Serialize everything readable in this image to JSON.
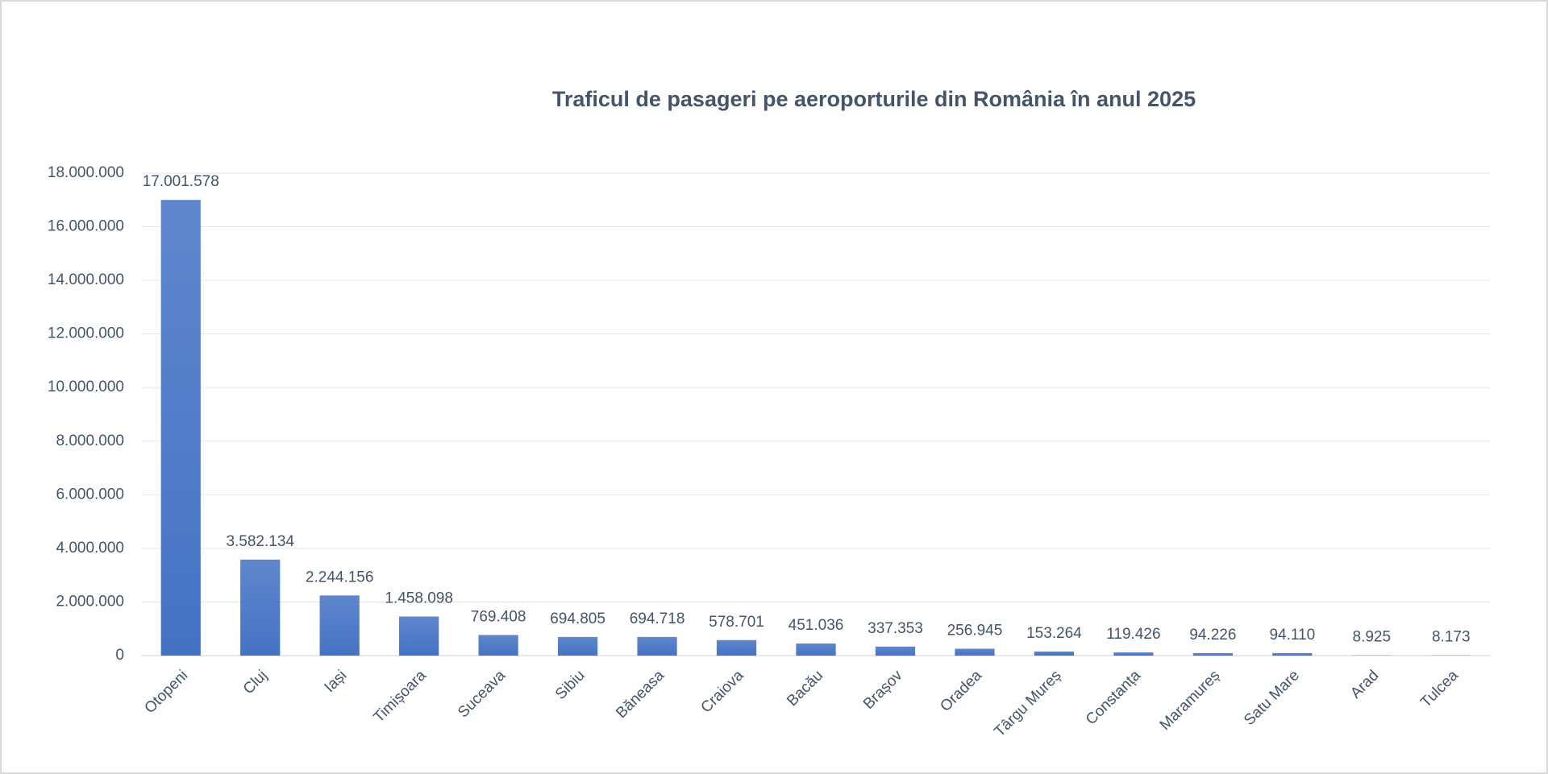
{
  "chart_data": {
    "type": "bar",
    "title": "Traficul de pasageri pe aeroporturile din România în anul 2025",
    "categories": [
      "Otopeni",
      "Cluj",
      "Iași",
      "Timișoara",
      "Suceava",
      "Sibiu",
      "Băneasa",
      "Craiova",
      "Bacău",
      "Brașov",
      "Oradea",
      "Târgu Mureș",
      "Constanța",
      "Maramureș",
      "Satu Mare",
      "Arad",
      "Tulcea"
    ],
    "values": [
      17001578,
      3582134,
      2244156,
      1458098,
      769408,
      694805,
      694718,
      578701,
      451036,
      337353,
      256945,
      153264,
      119426,
      94226,
      94110,
      8925,
      8173
    ],
    "value_labels": [
      "17.001.578",
      "3.582.134",
      "2.244.156",
      "1.458.098",
      "769.408",
      "694.805",
      "694.718",
      "578.701",
      "451.036",
      "337.353",
      "256.945",
      "153.264",
      "119.426",
      "94.226",
      "94.110",
      "8.925",
      "8.173"
    ],
    "color": "#4472c4",
    "ylim": [
      0,
      18000000
    ],
    "yticks": [
      0,
      {
        "value": 2000000,
        "label": "2.000.000"
      },
      {
        "value": 4000000,
        "label": "4.000.000"
      },
      {
        "value": 6000000,
        "label": "6.000.000"
      },
      {
        "value": 8000000,
        "label": "8.000.000"
      },
      {
        "value": 10000000,
        "label": "10.000.000"
      },
      {
        "value": 12000000,
        "label": "12.000.000"
      },
      {
        "value": 14000000,
        "label": "14.000.000"
      },
      {
        "value": 16000000,
        "label": "16.000.000"
      },
      {
        "value": 18000000,
        "label": "18.000.000"
      }
    ],
    "grid": true
  }
}
